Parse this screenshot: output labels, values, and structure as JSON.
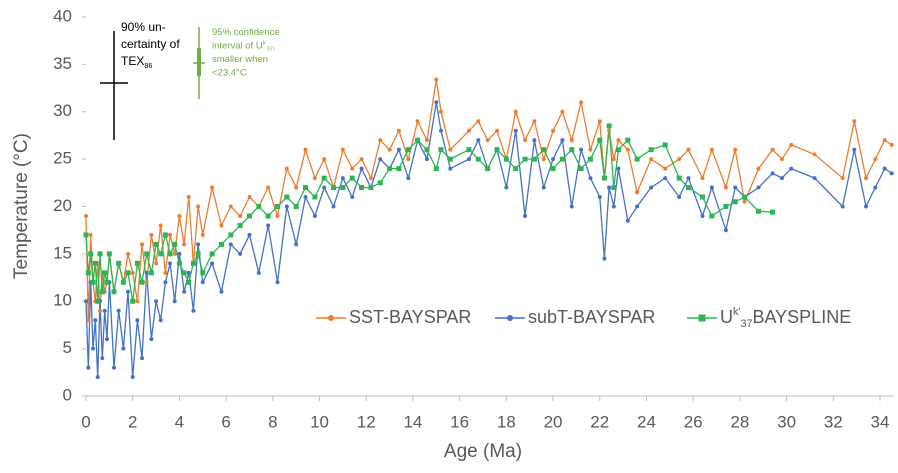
{
  "chart_data": {
    "type": "line",
    "xlabel": "Age (Ma)",
    "ylabel": "Temperature (°C)",
    "x": [
      0,
      0.1,
      0.2,
      0.3,
      0.4,
      0.5,
      0.6,
      0.7,
      0.8,
      0.9,
      1.0,
      1.2,
      1.4,
      1.6,
      1.8,
      2.0,
      2.2,
      2.4,
      2.6,
      2.8,
      3.0,
      3.2,
      3.4,
      3.6,
      3.8,
      4.0,
      4.2,
      4.4,
      4.6,
      4.8,
      5.0,
      5.4,
      5.8,
      6.2,
      6.6,
      7.0,
      7.4,
      7.8,
      8.2,
      8.6,
      9.0,
      9.4,
      9.8,
      10.2,
      10.6,
      11.0,
      11.4,
      11.8,
      12.2,
      12.6,
      13.0,
      13.4,
      13.8,
      14.2,
      14.6,
      15.0,
      15.2,
      15.6,
      16.4,
      16.8,
      17.2,
      17.6,
      18.0,
      18.4,
      18.8,
      19.2,
      19.6,
      20.0,
      20.4,
      20.8,
      21.2,
      21.6,
      22.0,
      22.2,
      22.4,
      22.6,
      22.8,
      23.2,
      23.6,
      24.2,
      24.8,
      25.4,
      25.8,
      26.4,
      26.8,
      27.4,
      27.8,
      28.2,
      28.8,
      29.4,
      29.8,
      30.2,
      31.2,
      32.4,
      32.9,
      33.4,
      33.8,
      34.2,
      34.5
    ],
    "series": [
      {
        "name": [
          {
            "text": "SST-BAYSPAR"
          }
        ],
        "color": "#ed7d31",
        "marker": "circle",
        "values": [
          19,
          8,
          17,
          12,
          10,
          14,
          9,
          13,
          11,
          12,
          15,
          11,
          14,
          12,
          15,
          13,
          10,
          16,
          12,
          17,
          14,
          18,
          13,
          17,
          15,
          19,
          16,
          21,
          14,
          20,
          17,
          22,
          18,
          20,
          19,
          21,
          20,
          22,
          19,
          24,
          22,
          26,
          23,
          25,
          22,
          26,
          24,
          25,
          23,
          27,
          26,
          28,
          25,
          29,
          27,
          33.4,
          30,
          26,
          28,
          29,
          27,
          28,
          25,
          30,
          27,
          29,
          25,
          28,
          30,
          27,
          31,
          26,
          29,
          23,
          28,
          25,
          27,
          26,
          21.5,
          25,
          24,
          25,
          26,
          23,
          26,
          22,
          26,
          20.5,
          24,
          26,
          25,
          26.5,
          25.5,
          23,
          29,
          23,
          25,
          27,
          26.5
        ]
      },
      {
        "name": [
          {
            "text": "subT-BAYSPAR"
          }
        ],
        "color": "#4472c4",
        "marker": "circle",
        "values": [
          10,
          3,
          12,
          5,
          8,
          2,
          10,
          4,
          9,
          6,
          12,
          3,
          9,
          5,
          11,
          2,
          8,
          4,
          13,
          6,
          10,
          8,
          12,
          14,
          10,
          15,
          11,
          13,
          9,
          16,
          12,
          14,
          11,
          16,
          15,
          17,
          13,
          18,
          12,
          20,
          16,
          21,
          19,
          22,
          20,
          23,
          21,
          24,
          22,
          25,
          24,
          26,
          23,
          27,
          25,
          31,
          28,
          24,
          25,
          27,
          24,
          26,
          22,
          28,
          19,
          27,
          22,
          25,
          27,
          20,
          26,
          23,
          21,
          14.5,
          22,
          20,
          24,
          18.5,
          20,
          22,
          23,
          21,
          23,
          19,
          22,
          17.5,
          22,
          21,
          22,
          23.5,
          23,
          24,
          23,
          20,
          26,
          20,
          22,
          24,
          23.5
        ]
      },
      {
        "name": [
          {
            "text": "U"
          },
          {
            "text": "k'",
            "script": "sup"
          },
          {
            "text": "37",
            "script": "sub"
          },
          {
            "text": "BAYSPLINE"
          }
        ],
        "color": "#2eb553",
        "marker": "square",
        "values": [
          17,
          13,
          15,
          12,
          14,
          10,
          15,
          11,
          13,
          12,
          15,
          11,
          14,
          12,
          13,
          10,
          14,
          12,
          15,
          13,
          16,
          15,
          17,
          15,
          16,
          14,
          13,
          12,
          14,
          15,
          13,
          15,
          16,
          17,
          18,
          19,
          20,
          19,
          20,
          21,
          20,
          22,
          21,
          23,
          22,
          22,
          23,
          22,
          22,
          22.5,
          24,
          24,
          26,
          27,
          26,
          24,
          26,
          25,
          26,
          25,
          24,
          26,
          25,
          24,
          25,
          25,
          26,
          24,
          25,
          26,
          24,
          25,
          27,
          23,
          28.5,
          22,
          26,
          27,
          25,
          26,
          26.5,
          23,
          22,
          21,
          19,
          20,
          20.5,
          21,
          19.5,
          19.4,
          null,
          null,
          null,
          null,
          null,
          null,
          null,
          null,
          null
        ]
      }
    ],
    "xlim": [
      0,
      34.6
    ],
    "ylim": [
      0,
      40
    ],
    "xticks": [
      0,
      2,
      4,
      6,
      8,
      10,
      12,
      14,
      16,
      18,
      20,
      22,
      24,
      26,
      28,
      30,
      32,
      34
    ],
    "yticks": [
      0,
      5,
      10,
      15,
      20,
      25,
      30,
      35,
      40
    ],
    "annotations": [
      {
        "color": "#000000",
        "lines": [
          [
            {
              "text": "90% un-"
            }
          ],
          [
            {
              "text": "certainty of"
            }
          ],
          [
            {
              "text": "TEX"
            },
            {
              "text": "86",
              "script": "sub"
            }
          ]
        ]
      },
      {
        "color": "#70ad47",
        "lines": [
          [
            {
              "text": "95% confidence"
            }
          ],
          [
            {
              "text": "interval of U"
            },
            {
              "text": "k'",
              "script": "sup"
            },
            {
              "text": "37",
              "script": "sub"
            },
            {
              "text": ","
            }
          ],
          [
            {
              "text": "smaller when"
            }
          ],
          [
            {
              "text": "<23.4°C"
            }
          ]
        ]
      }
    ]
  }
}
